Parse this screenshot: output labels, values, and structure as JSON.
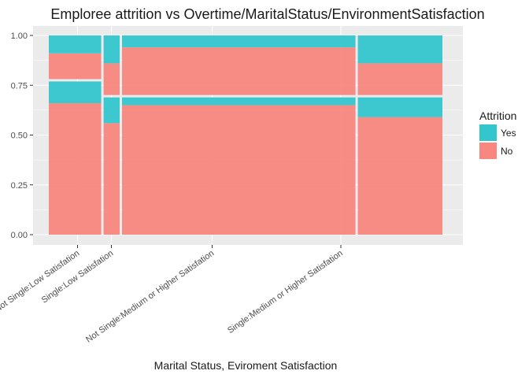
{
  "chart_data": {
    "type": "mosaic",
    "title": "Emploree attrition vs Overtime/MaritalStatus/EnvironmentSatisfaction",
    "xlabel": "Marital Status, Eviroment Satisfaction",
    "ylabel": "",
    "ylim": [
      0,
      1
    ],
    "y_ticks": [
      "0.00",
      "0.25",
      "0.50",
      "0.75",
      "1.00"
    ],
    "x_tick_labels": [
      "Not Single:Low Satisfation",
      "Single:Low Satisfation",
      "Not Single:Medium or Higher Satisfation",
      "Single:Medium or Higher Satisfation"
    ],
    "legend": {
      "title": "Attrition",
      "placement": "right",
      "items": [
        {
          "label": "Yes",
          "color": "#33c6cc"
        },
        {
          "label": "No",
          "color": "#f8877f"
        }
      ]
    },
    "grid": true,
    "x_proportions": [
      0.125,
      0.043,
      0.55,
      0.2
    ],
    "overtime_split": [
      0.775,
      0.695,
      0.695,
      0.695
    ],
    "no_proportion_upper": [
      0.91,
      0.86,
      0.94,
      0.86
    ],
    "no_proportion_lower": [
      0.66,
      0.56,
      0.65,
      0.59
    ],
    "x_tick_positions": [
      0.073,
      0.159,
      0.415,
      0.742
    ]
  },
  "colors": {
    "yes": "#33c6cc",
    "no": "#f8877f",
    "panel": "#ebebeb",
    "grid": "#ffffff"
  }
}
